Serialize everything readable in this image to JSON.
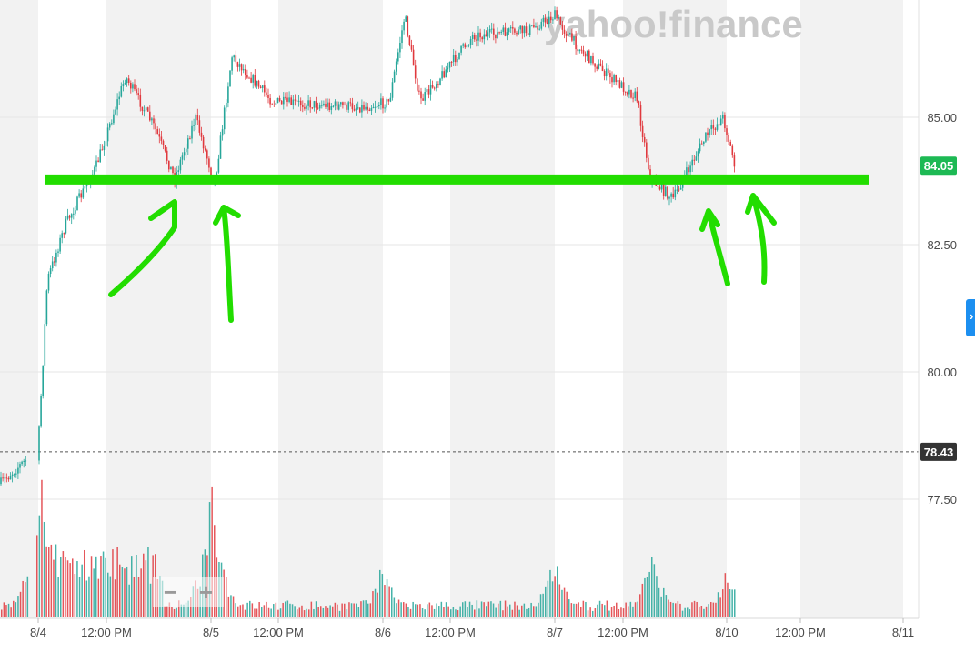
{
  "watermark": "yahoo!finance",
  "zoom": {
    "minus": "−",
    "plus": "+"
  },
  "side_tab": {
    "icon": "chevron-icon",
    "glyph": "›"
  },
  "colors": {
    "up": "#26a69a",
    "down": "#e0393e",
    "annotation": "#22dd00",
    "current_price_bg": "#1db954",
    "prev_close_bg": "#333333",
    "band": "#f2f2f2",
    "gridline": "#e6e6e6",
    "side_tab": "#1c8ff0"
  },
  "chart_data": {
    "type": "candlestick",
    "title": "",
    "xlabel": "",
    "ylabel": "",
    "x_tick_labels": [
      "8/4",
      "12:00 PM",
      "8/5",
      "12:00 PM",
      "8/6",
      "12:00 PM",
      "8/7",
      "12:00 PM",
      "8/10",
      "12:00 PM",
      "8/11"
    ],
    "y_tick_labels": [
      "85.00",
      "82.50",
      "80.00",
      "77.50"
    ],
    "ylim": [
      76.3,
      87.2
    ],
    "current_price": {
      "label": "84.05",
      "value": 84.05
    },
    "previous_close": {
      "label": "78.43",
      "value": 78.43
    },
    "support_line": {
      "value": 83.78,
      "color": "#22dd00"
    },
    "price_path": [
      {
        "t": "8/3 close",
        "price": 77.8
      },
      {
        "t": "8/4 open",
        "price": 78.5
      },
      {
        "t": "8/4 early",
        "price": 81.8
      },
      {
        "t": "8/4 ~10:30",
        "price": 82.9
      },
      {
        "t": "8/4 ~12:00",
        "price": 84.0
      },
      {
        "t": "8/4 ~1:30 PM",
        "price": 85.8
      },
      {
        "t": "8/4 ~3:30 PM",
        "price": 84.8
      },
      {
        "t": "8/4 ~5:00 PM",
        "price": 83.8
      },
      {
        "t": "8/4 ~7:00 PM",
        "price": 85.0
      },
      {
        "t": "8/5 early",
        "price": 83.7
      },
      {
        "t": "8/5 ~3:00 AM",
        "price": 86.2
      },
      {
        "t": "8/5 ~12:00 PM",
        "price": 85.3
      },
      {
        "t": "8/5 ~6:00 PM",
        "price": 85.2
      },
      {
        "t": "8/6 early",
        "price": 85.3
      },
      {
        "t": "8/6 ~1:00 AM",
        "price": 87.0
      },
      {
        "t": "8/6 ~6:00 AM",
        "price": 85.3
      },
      {
        "t": "8/6 ~12:00 PM",
        "price": 86.6
      },
      {
        "t": "8/6 ~6:00 PM",
        "price": 86.7
      },
      {
        "t": "8/6 ~9:00 PM",
        "price": 87.0
      },
      {
        "t": "8/7 early",
        "price": 86.6
      },
      {
        "t": "8/7 ~6:00 AM",
        "price": 86.3
      },
      {
        "t": "8/7 ~12:00 PM",
        "price": 85.8
      },
      {
        "t": "8/7 ~3:00 PM",
        "price": 85.4
      },
      {
        "t": "8/7 ~5:00 PM",
        "price": 83.8
      },
      {
        "t": "8/7 ~8:00 PM",
        "price": 83.4
      },
      {
        "t": "8/7 ~10:00 PM",
        "price": 84.6
      },
      {
        "t": "8/10 open",
        "price": 85.0
      },
      {
        "t": "8/10 latest",
        "price": 84.05
      }
    ],
    "volume_spikes": [
      {
        "t": "8/4 open",
        "value": 1.0
      },
      {
        "t": "8/5 early",
        "value": 0.9
      },
      {
        "t": "8/6 early",
        "value": 0.42
      },
      {
        "t": "8/7 early",
        "value": 0.48
      },
      {
        "t": "8/7 ~5:00 PM",
        "value": 0.48
      },
      {
        "t": "8/10 open",
        "value": 0.35
      }
    ],
    "annotations": [
      {
        "type": "horizontal-line",
        "note": "support"
      },
      {
        "type": "arrow",
        "target": "8/4 ~5:00 PM touch"
      },
      {
        "type": "arrow",
        "target": "8/5 early touch"
      },
      {
        "type": "arrow",
        "target": "8/7 ~6:00 PM touch"
      },
      {
        "type": "arrow",
        "target": "8/10 touch"
      }
    ],
    "grid": true,
    "legend": "none"
  }
}
